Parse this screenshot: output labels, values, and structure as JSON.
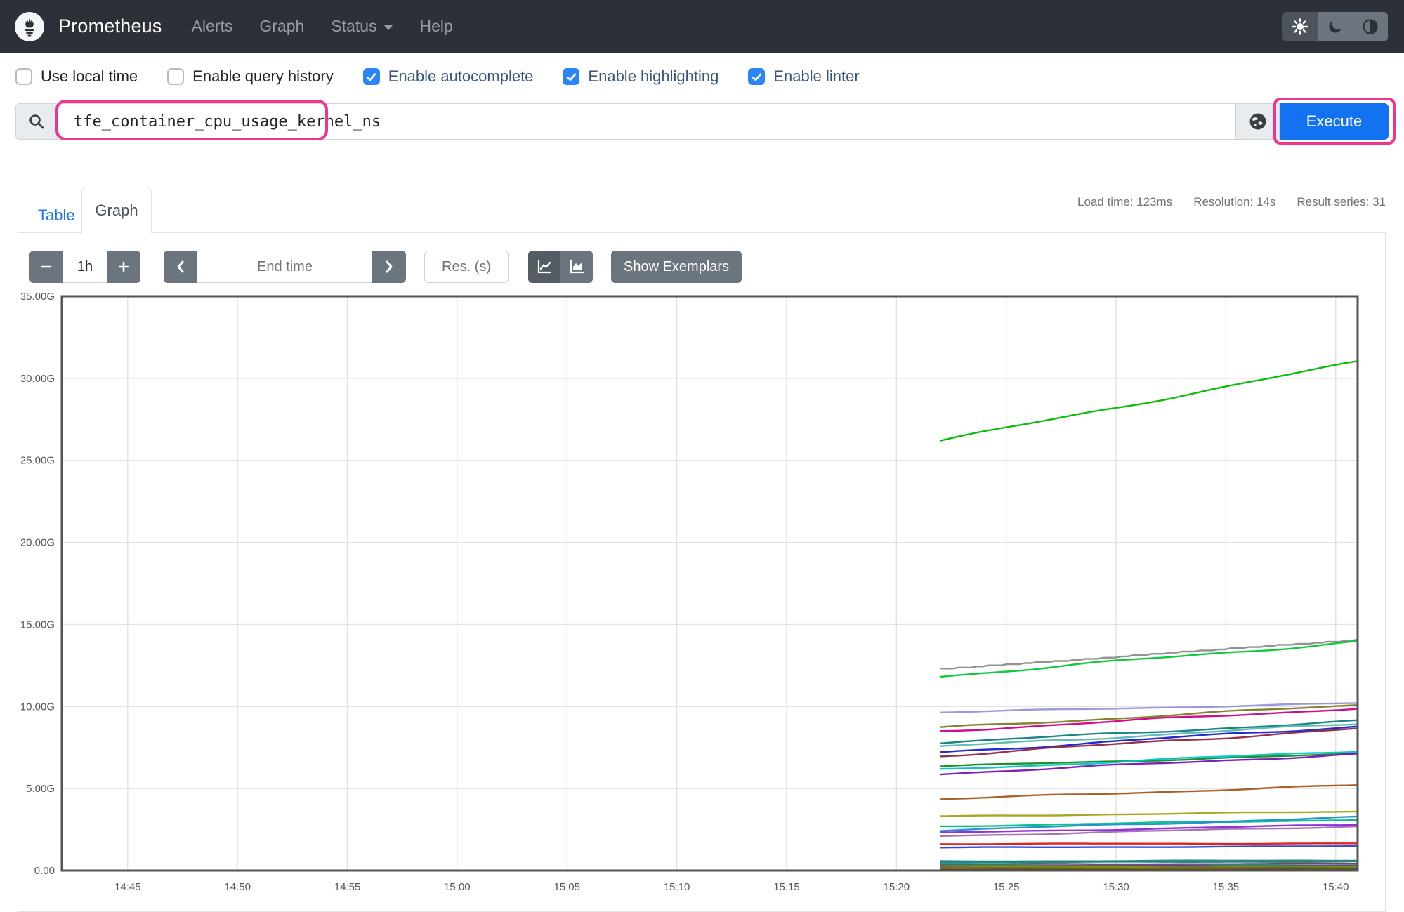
{
  "navbar": {
    "brand": "Prometheus",
    "items": [
      {
        "label": "Alerts"
      },
      {
        "label": "Graph"
      },
      {
        "label": "Status"
      },
      {
        "label": "Help"
      }
    ]
  },
  "options": {
    "items": [
      {
        "label": "Use local time",
        "checked": false
      },
      {
        "label": "Enable query history",
        "checked": false
      },
      {
        "label": "Enable autocomplete",
        "checked": true
      },
      {
        "label": "Enable highlighting",
        "checked": true
      },
      {
        "label": "Enable linter",
        "checked": true
      }
    ]
  },
  "query": {
    "value": "tfe_container_cpu_usage_kernel_ns",
    "execute_label": "Execute"
  },
  "stats": {
    "load_time": "Load time: 123ms",
    "resolution": "Resolution: 14s",
    "result_series": "Result series: 31"
  },
  "tabs": [
    {
      "label": "Table",
      "active": false
    },
    {
      "label": "Graph",
      "active": true
    }
  ],
  "toolbar": {
    "range_value": "1h",
    "end_time_placeholder": "End time",
    "res_placeholder": "Res. (s)",
    "show_exemplars_label": "Show Exemplars"
  },
  "colors": {
    "navbar_bg": "#2c3138",
    "accent_blue": "#1272f2",
    "checkbox_blue": "#2a85f8",
    "link_blue": "#2176f5",
    "annotation_pink": "#f0368c",
    "secondary_gray": "#6c757d",
    "chart_frame": "#545454",
    "chart_grid": "#e2e2e2"
  },
  "chart_data": {
    "type": "line",
    "title": "",
    "xlabel": "",
    "ylabel": "",
    "unit": "G (nanoseconds, SI giga)",
    "ylim_g": [
      0,
      35
    ],
    "yticks": [
      "0.00",
      "5.00G",
      "10.00G",
      "15.00G",
      "20.00G",
      "25.00G",
      "30.00G",
      "35.00G"
    ],
    "xticks": [
      "14:45",
      "14:50",
      "14:55",
      "15:00",
      "15:05",
      "15:10",
      "15:15",
      "15:20",
      "15:25",
      "15:30",
      "15:35",
      "15:40"
    ],
    "x_window": [
      "14:42",
      "15:41"
    ],
    "series_time_range": [
      "15:22",
      "15:41"
    ],
    "grid": true,
    "legend": "none",
    "series": [
      {
        "color": "#00b800",
        "start_g": 26.2,
        "end_g": 31.0,
        "stepped": false
      },
      {
        "color": "#8c8c8c",
        "start_g": 12.3,
        "end_g": 14.1,
        "stepped": true
      },
      {
        "color": "#00c832",
        "start_g": 11.85,
        "end_g": 13.95,
        "stepped": false
      },
      {
        "color": "#9393d9",
        "start_g": 9.65,
        "end_g": 10.2,
        "stepped": false
      },
      {
        "color": "#7c7c22",
        "start_g": 8.7,
        "end_g": 10.1,
        "stepped": false
      },
      {
        "color": "#cf0087",
        "start_g": 8.5,
        "end_g": 9.9,
        "stepped": false
      },
      {
        "color": "#0f7e7e",
        "start_g": 7.8,
        "end_g": 9.1,
        "stepped": false
      },
      {
        "color": "#5cb8b2",
        "start_g": 7.55,
        "end_g": 8.95,
        "stepped": false
      },
      {
        "color": "#1520cc",
        "start_g": 7.2,
        "end_g": 8.8,
        "stepped": false
      },
      {
        "color": "#8f2740",
        "start_g": 7.0,
        "end_g": 8.65,
        "stepped": false
      },
      {
        "color": "#0f8c1f",
        "start_g": 6.35,
        "end_g": 7.1,
        "stepped": false
      },
      {
        "color": "#00c3c3",
        "start_g": 6.15,
        "end_g": 7.3,
        "stepped": false
      },
      {
        "color": "#7c12b8",
        "start_g": 5.9,
        "end_g": 7.1,
        "stepped": false
      },
      {
        "color": "#a5571f",
        "start_g": 4.35,
        "end_g": 5.2,
        "stepped": false
      },
      {
        "color": "#a3a31a",
        "start_g": 3.3,
        "end_g": 3.6,
        "stepped": false
      },
      {
        "color": "#00bd86",
        "start_g": 2.7,
        "end_g": 3.1,
        "stepped": false
      },
      {
        "color": "#1b8fd1",
        "start_g": 2.45,
        "end_g": 3.25,
        "stepped": false
      },
      {
        "color": "#8c27d8",
        "start_g": 2.3,
        "end_g": 2.8,
        "stepped": false
      },
      {
        "color": "#a56bb0",
        "start_g": 2.1,
        "end_g": 2.7,
        "stepped": false
      },
      {
        "color": "#e01414",
        "start_g": 1.62,
        "end_g": 1.65,
        "stepped": false
      },
      {
        "color": "#2741d6",
        "start_g": 1.4,
        "end_g": 1.48,
        "stepped": false
      },
      {
        "color": "#3b7480",
        "start_g": 0.56,
        "end_g": 0.62,
        "stepped": false
      },
      {
        "color": "#008b8b",
        "start_g": 0.5,
        "end_g": 0.55,
        "stepped": false
      },
      {
        "color": "#7e3a46",
        "start_g": 0.38,
        "end_g": 0.42,
        "stepped": false
      },
      {
        "color": "#2e8b57",
        "start_g": 0.3,
        "end_g": 0.33,
        "stepped": false
      },
      {
        "color": "#9400d3",
        "start_g": 0.25,
        "end_g": 0.28,
        "stepped": false
      },
      {
        "color": "#8f8f00",
        "start_g": 0.2,
        "end_g": 0.22,
        "stepped": false
      },
      {
        "color": "#556b2f",
        "start_g": 0.14,
        "end_g": 0.16,
        "stepped": false
      },
      {
        "color": "#b8860b",
        "start_g": 0.1,
        "end_g": 0.12,
        "stepped": false
      },
      {
        "color": "#6f6f00",
        "start_g": 0.07,
        "end_g": 0.08,
        "stepped": false
      },
      {
        "color": "#444444",
        "start_g": 0.04,
        "end_g": 0.05,
        "stepped": false
      }
    ]
  }
}
